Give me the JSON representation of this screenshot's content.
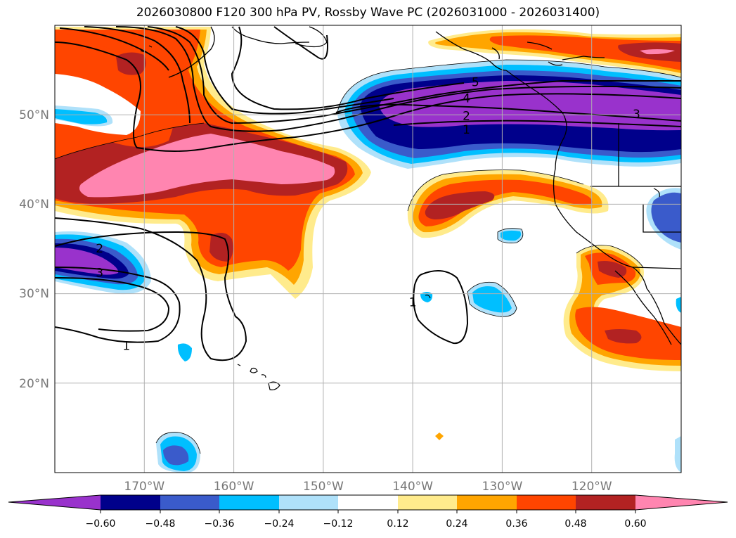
{
  "title": "2026030800 F120 300 hPa PV, Rossby Wave PC (2026031000 - 2026031400)",
  "map": {
    "lon_range": [
      -180,
      -110
    ],
    "lat_range": [
      10,
      60
    ],
    "lon_ticks": [
      {
        "value": -170,
        "label": "170°W"
      },
      {
        "value": -160,
        "label": "160°W"
      },
      {
        "value": -150,
        "label": "150°W"
      },
      {
        "value": -140,
        "label": "140°W"
      },
      {
        "value": -130,
        "label": "130°W"
      },
      {
        "value": -120,
        "label": "120°W"
      }
    ],
    "lat_ticks": [
      {
        "value": 50,
        "label": "50°N"
      },
      {
        "value": 40,
        "label": "40°N"
      },
      {
        "value": 30,
        "label": "30°N"
      },
      {
        "value": 20,
        "label": "20°N"
      }
    ],
    "contour_labels": [
      {
        "text": "5",
        "lon": -133.0,
        "lat": 53.6
      },
      {
        "text": "4",
        "lon": -134.0,
        "lat": 51.8
      },
      {
        "text": "2",
        "lon": -134.0,
        "lat": 49.8
      },
      {
        "text": "1",
        "lon": -134.0,
        "lat": 48.3
      },
      {
        "text": "3",
        "lon": -115.0,
        "lat": 50.0
      },
      {
        "text": "2",
        "lon": -175.0,
        "lat": 35.0
      },
      {
        "text": "3",
        "lon": -175.0,
        "lat": 32.3
      },
      {
        "text": "1",
        "lon": -172.0,
        "lat": 24.1
      },
      {
        "text": "1",
        "lon": -140.0,
        "lat": 29.0
      }
    ]
  },
  "colorbar": {
    "ticks": [
      "−0.60",
      "−0.48",
      "−0.36",
      "−0.24",
      "−0.12",
      "0.12",
      "0.24",
      "0.36",
      "0.48",
      "0.60"
    ],
    "colors": {
      "neg_extreme": "#9932CC",
      "neg_60": "#00008B",
      "neg_48": "#3A5BCB",
      "neg_36": "#00BFFF",
      "neg_24": "#AFE1FA",
      "neutral": "#FFFFFF",
      "pos_12": "#FFEB8C",
      "pos_24": "#FFA500",
      "pos_36": "#FF4500",
      "pos_48": "#B22222",
      "pos_60": "#FF85B0"
    }
  }
}
